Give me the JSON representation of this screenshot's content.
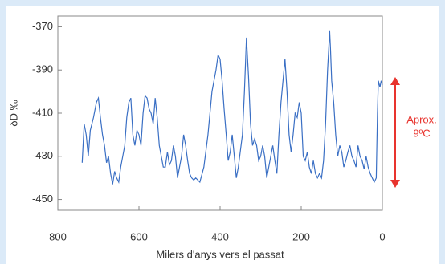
{
  "chart_data": {
    "type": "line",
    "xlabel": "Milers d'anys vers el passat",
    "ylabel": "δD ‰",
    "annotation": [
      "Aprox.",
      "9ºC"
    ],
    "annotation_color": "#e8342e",
    "color": "#3a6fc4",
    "xlim": [
      800,
      0
    ],
    "xticks": [
      800,
      600,
      400,
      200,
      0
    ],
    "ylim": [
      -455,
      -365
    ],
    "yticks": [
      -370,
      -390,
      -410,
      -430,
      -450
    ],
    "x": [
      740,
      735,
      730,
      725,
      720,
      712,
      705,
      700,
      695,
      690,
      685,
      680,
      675,
      670,
      665,
      660,
      655,
      650,
      645,
      640,
      635,
      630,
      625,
      620,
      615,
      610,
      605,
      600,
      595,
      590,
      585,
      580,
      575,
      570,
      565,
      560,
      555,
      550,
      545,
      540,
      535,
      530,
      525,
      520,
      515,
      510,
      505,
      500,
      495,
      490,
      485,
      480,
      475,
      470,
      465,
      460,
      450,
      440,
      430,
      420,
      410,
      405,
      400,
      395,
      390,
      385,
      380,
      375,
      370,
      365,
      360,
      355,
      345,
      340,
      335,
      330,
      325,
      320,
      315,
      310,
      305,
      300,
      295,
      290,
      285,
      280,
      275,
      270,
      265,
      260,
      255,
      250,
      245,
      240,
      235,
      230,
      225,
      220,
      215,
      210,
      205,
      200,
      195,
      190,
      185,
      180,
      175,
      170,
      165,
      160,
      155,
      150,
      145,
      140,
      135,
      130,
      128,
      125,
      120,
      115,
      110,
      105,
      100,
      95,
      90,
      85,
      80,
      75,
      70,
      65,
      60,
      55,
      50,
      45,
      40,
      35,
      30,
      25,
      20,
      15,
      12,
      10,
      6,
      3,
      0
    ],
    "values": [
      -433,
      -415,
      -420,
      -430,
      -418,
      -412,
      -405,
      -403,
      -412,
      -420,
      -425,
      -433,
      -430,
      -438,
      -443,
      -437,
      -440,
      -442,
      -435,
      -430,
      -425,
      -412,
      -405,
      -403,
      -420,
      -425,
      -418,
      -420,
      -425,
      -410,
      -402,
      -403,
      -408,
      -410,
      -415,
      -403,
      -412,
      -425,
      -430,
      -435,
      -435,
      -428,
      -434,
      -432,
      -425,
      -430,
      -440,
      -435,
      -430,
      -420,
      -425,
      -432,
      -438,
      -440,
      -441,
      -440,
      -442,
      -435,
      -420,
      -400,
      -390,
      -383,
      -385,
      -395,
      -408,
      -420,
      -432,
      -428,
      -420,
      -430,
      -440,
      -435,
      -420,
      -400,
      -375,
      -393,
      -415,
      -425,
      -422,
      -425,
      -432,
      -430,
      -425,
      -430,
      -440,
      -435,
      -430,
      -425,
      -432,
      -438,
      -420,
      -405,
      -395,
      -385,
      -400,
      -420,
      -428,
      -420,
      -410,
      -412,
      -405,
      -410,
      -430,
      -432,
      -428,
      -435,
      -438,
      -432,
      -438,
      -440,
      -438,
      -440,
      -432,
      -415,
      -390,
      -372,
      -380,
      -395,
      -405,
      -420,
      -430,
      -425,
      -428,
      -435,
      -432,
      -428,
      -425,
      -430,
      -432,
      -435,
      -425,
      -430,
      -432,
      -436,
      -430,
      -435,
      -438,
      -440,
      -442,
      -440,
      -410,
      -395,
      -398,
      -395,
      -397
    ]
  }
}
